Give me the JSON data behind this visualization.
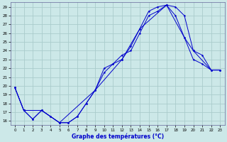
{
  "xlabel": "Graphe des températures (°C)",
  "xlim": [
    -0.5,
    23.5
  ],
  "ylim": [
    15.5,
    29.5
  ],
  "yticks": [
    16,
    17,
    18,
    19,
    20,
    21,
    22,
    23,
    24,
    25,
    26,
    27,
    28,
    29
  ],
  "xticks": [
    0,
    1,
    2,
    3,
    4,
    5,
    6,
    7,
    8,
    9,
    10,
    11,
    12,
    13,
    14,
    15,
    16,
    17,
    18,
    19,
    20,
    21,
    22,
    23
  ],
  "background_color": "#cce8e8",
  "grid_color": "#aacccc",
  "line_color": "#0000cc",
  "line1_x": [
    0,
    1,
    2,
    3,
    4,
    5,
    6,
    7,
    8,
    9,
    10,
    11,
    12,
    13,
    14,
    15,
    16,
    17,
    18,
    19,
    20,
    21,
    22,
    23
  ],
  "line1_y": [
    19.8,
    17.2,
    16.2,
    17.2,
    16.5,
    15.8,
    15.8,
    16.5,
    18.0,
    19.5,
    22.0,
    22.5,
    23.0,
    24.5,
    26.5,
    28.5,
    29.0,
    29.2,
    29.0,
    28.0,
    24.0,
    23.5,
    21.8,
    21.8
  ],
  "line2_x": [
    0,
    1,
    2,
    3,
    4,
    5,
    6,
    7,
    8,
    9,
    10,
    11,
    12,
    13,
    14,
    15,
    16,
    17,
    18,
    19,
    20,
    21,
    22,
    23
  ],
  "line2_y": [
    19.8,
    17.2,
    16.2,
    17.2,
    16.5,
    15.8,
    15.8,
    16.5,
    18.0,
    19.5,
    21.5,
    22.5,
    23.5,
    24.0,
    26.0,
    28.0,
    28.5,
    29.2,
    28.0,
    25.5,
    23.0,
    22.5,
    21.8,
    21.8
  ],
  "line3_x": [
    0,
    1,
    3,
    5,
    9,
    12,
    14,
    17,
    19,
    20,
    22,
    23
  ],
  "line3_y": [
    19.8,
    17.2,
    17.2,
    15.8,
    19.5,
    23.0,
    26.5,
    29.2,
    25.5,
    24.0,
    21.8,
    21.8
  ]
}
